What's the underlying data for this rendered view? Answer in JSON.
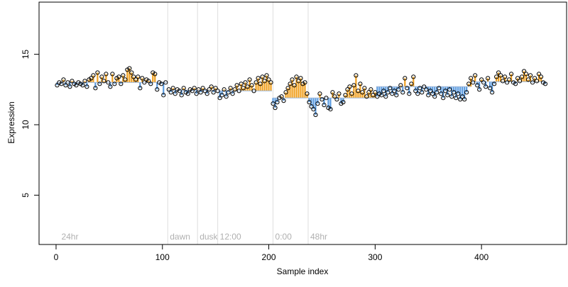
{
  "chart_data": {
    "type": "scatter",
    "title": "",
    "xlabel": "Sample index",
    "ylabel": "Expression",
    "xlim": [
      -16,
      480
    ],
    "ylim": [
      1.5,
      18.7
    ],
    "x_ticks": [
      0,
      100,
      200,
      300,
      400
    ],
    "y_ticks": [
      5,
      10,
      15
    ],
    "grid": false,
    "legend": "none",
    "colors": {
      "above_baseline": "#f0a020",
      "below_baseline": "#5a9be0",
      "phase_line": "#dedede",
      "phase_label": "#b0b0b0",
      "point_edge": "#000000"
    },
    "phase_markers": [
      {
        "x": 3,
        "label": "24hr"
      },
      {
        "x": 105,
        "label": "dawn"
      },
      {
        "x": 133,
        "label": "dusk"
      },
      {
        "x": 152,
        "label": "12:00"
      },
      {
        "x": 204,
        "label": "0:00"
      },
      {
        "x": 237,
        "label": "48hr"
      }
    ],
    "baseline_segments": [
      {
        "x": [
          1,
          104
        ],
        "y": 13.0
      },
      {
        "x": [
          105,
          151
        ],
        "y": 12.45
      },
      {
        "x": [
          152,
          203
        ],
        "y": 12.4
      },
      {
        "x": [
          204,
          236
        ],
        "y": 11.9
      },
      {
        "x": [
          237,
          300
        ],
        "y": 11.9
      },
      {
        "x": [
          301,
          390
        ],
        "y": 12.7
      },
      {
        "x": [
          391,
          460
        ],
        "y": 13.05
      }
    ],
    "series": [
      {
        "values": [
          [
            1,
            12.8
          ],
          [
            3,
            13.0
          ],
          [
            5,
            12.9
          ],
          [
            7,
            13.2
          ],
          [
            9,
            12.8
          ],
          [
            11,
            13.0
          ],
          [
            13,
            12.7
          ],
          [
            15,
            13.1
          ],
          [
            17,
            12.9
          ],
          [
            19,
            12.8
          ],
          [
            21,
            13.0
          ],
          [
            23,
            12.9
          ],
          [
            25,
            12.8
          ],
          [
            27,
            13.1
          ],
          [
            29,
            12.7
          ],
          [
            31,
            13.2
          ],
          [
            33,
            13.3
          ],
          [
            35,
            13.5
          ],
          [
            37,
            12.6
          ],
          [
            39,
            13.7
          ],
          [
            41,
            12.9
          ],
          [
            43,
            13.4
          ],
          [
            45,
            13.1
          ],
          [
            47,
            13.6
          ],
          [
            49,
            13.0
          ],
          [
            51,
            12.7
          ],
          [
            53,
            13.6
          ],
          [
            55,
            12.9
          ],
          [
            57,
            13.3
          ],
          [
            59,
            13.4
          ],
          [
            61,
            12.9
          ],
          [
            63,
            13.5
          ],
          [
            65,
            13.2
          ],
          [
            67,
            13.9
          ],
          [
            69,
            14.0
          ],
          [
            71,
            13.7
          ],
          [
            73,
            13.4
          ],
          [
            75,
            13.2
          ],
          [
            77,
            13.4
          ],
          [
            79,
            12.6
          ],
          [
            81,
            13.3
          ],
          [
            83,
            13.0
          ],
          [
            85,
            13.2
          ],
          [
            87,
            13.1
          ],
          [
            89,
            12.9
          ],
          [
            91,
            13.7
          ],
          [
            93,
            13.6
          ],
          [
            95,
            12.5
          ],
          [
            97,
            13.0
          ],
          [
            99,
            12.9
          ],
          [
            101,
            12.1
          ],
          [
            103,
            13.0
          ],
          [
            106,
            12.5
          ],
          [
            108,
            12.3
          ],
          [
            110,
            12.6
          ],
          [
            112,
            12.2
          ],
          [
            114,
            12.5
          ],
          [
            116,
            12.4
          ],
          [
            118,
            12.1
          ],
          [
            120,
            12.6
          ],
          [
            122,
            12.3
          ],
          [
            124,
            12.2
          ],
          [
            126,
            12.5
          ],
          [
            128,
            12.4
          ],
          [
            130,
            12.6
          ],
          [
            132,
            12.2
          ],
          [
            134,
            12.5
          ],
          [
            136,
            12.3
          ],
          [
            138,
            12.6
          ],
          [
            140,
            12.4
          ],
          [
            142,
            12.2
          ],
          [
            144,
            12.5
          ],
          [
            146,
            12.7
          ],
          [
            148,
            12.3
          ],
          [
            150,
            12.6
          ],
          [
            152,
            12.4
          ],
          [
            154,
            11.9
          ],
          [
            156,
            12.1
          ],
          [
            158,
            12.5
          ],
          [
            160,
            12.0
          ],
          [
            162,
            12.3
          ],
          [
            164,
            12.6
          ],
          [
            166,
            12.2
          ],
          [
            168,
            12.5
          ],
          [
            170,
            12.8
          ],
          [
            172,
            12.4
          ],
          [
            174,
            12.9
          ],
          [
            176,
            12.6
          ],
          [
            178,
            13.0
          ],
          [
            180,
            12.7
          ],
          [
            182,
            13.2
          ],
          [
            184,
            12.8
          ],
          [
            186,
            12.4
          ],
          [
            188,
            13.0
          ],
          [
            190,
            13.3
          ],
          [
            192,
            12.9
          ],
          [
            194,
            13.4
          ],
          [
            196,
            13.1
          ],
          [
            198,
            13.5
          ],
          [
            200,
            13.2
          ],
          [
            202,
            13.0
          ],
          [
            204,
            11.5
          ],
          [
            206,
            11.2
          ],
          [
            208,
            11.6
          ],
          [
            210,
            11.9
          ],
          [
            212,
            12.0
          ],
          [
            214,
            11.7
          ],
          [
            216,
            12.3
          ],
          [
            218,
            12.6
          ],
          [
            220,
            12.9
          ],
          [
            222,
            13.2
          ],
          [
            224,
            12.8
          ],
          [
            226,
            13.4
          ],
          [
            228,
            13.1
          ],
          [
            230,
            13.3
          ],
          [
            232,
            12.9
          ],
          [
            234,
            13.0
          ],
          [
            236,
            12.2
          ],
          [
            238,
            11.6
          ],
          [
            240,
            11.3
          ],
          [
            242,
            11.1
          ],
          [
            244,
            10.7
          ],
          [
            246,
            11.5
          ],
          [
            248,
            12.2
          ],
          [
            250,
            11.8
          ],
          [
            252,
            11.4
          ],
          [
            254,
            11.9
          ],
          [
            256,
            11.2
          ],
          [
            258,
            11.1
          ],
          [
            260,
            12.3
          ],
          [
            262,
            12.0
          ],
          [
            264,
            11.8
          ],
          [
            266,
            12.2
          ],
          [
            268,
            11.5
          ],
          [
            270,
            11.6
          ],
          [
            272,
            12.1
          ],
          [
            274,
            12.5
          ],
          [
            276,
            12.7
          ],
          [
            278,
            12.2
          ],
          [
            280,
            12.8
          ],
          [
            282,
            13.5
          ],
          [
            284,
            12.4
          ],
          [
            286,
            12.9
          ],
          [
            288,
            12.3
          ],
          [
            290,
            12.6
          ],
          [
            292,
            12.0
          ],
          [
            294,
            12.3
          ],
          [
            296,
            12.5
          ],
          [
            298,
            12.1
          ],
          [
            300,
            12.3
          ],
          [
            302,
            12.0
          ],
          [
            304,
            12.2
          ],
          [
            306,
            12.1
          ],
          [
            308,
            12.4
          ],
          [
            310,
            12.0
          ],
          [
            312,
            12.3
          ],
          [
            314,
            12.6
          ],
          [
            316,
            12.2
          ],
          [
            318,
            12.4
          ],
          [
            320,
            12.1
          ],
          [
            322,
            12.5
          ],
          [
            324,
            12.8
          ],
          [
            326,
            12.3
          ],
          [
            328,
            13.3
          ],
          [
            330,
            12.6
          ],
          [
            332,
            12.2
          ],
          [
            334,
            12.9
          ],
          [
            336,
            13.4
          ],
          [
            338,
            12.4
          ],
          [
            340,
            12.2
          ],
          [
            342,
            12.6
          ],
          [
            344,
            12.3
          ],
          [
            346,
            12.7
          ],
          [
            348,
            12.5
          ],
          [
            350,
            12.1
          ],
          [
            352,
            12.4
          ],
          [
            354,
            12.2
          ],
          [
            356,
            12.0
          ],
          [
            358,
            12.3
          ],
          [
            360,
            12.6
          ],
          [
            362,
            12.2
          ],
          [
            364,
            11.9
          ],
          [
            366,
            12.4
          ],
          [
            368,
            12.1
          ],
          [
            370,
            12.5
          ],
          [
            372,
            12.0
          ],
          [
            374,
            12.3
          ],
          [
            376,
            11.9
          ],
          [
            378,
            12.2
          ],
          [
            380,
            11.8
          ],
          [
            382,
            12.0
          ],
          [
            384,
            11.8
          ],
          [
            386,
            12.3
          ],
          [
            388,
            12.9
          ],
          [
            390,
            13.3
          ],
          [
            392,
            13.0
          ],
          [
            394,
            13.5
          ],
          [
            396,
            12.8
          ],
          [
            398,
            12.5
          ],
          [
            400,
            13.2
          ],
          [
            402,
            13.0
          ],
          [
            404,
            12.7
          ],
          [
            406,
            13.3
          ],
          [
            408,
            12.6
          ],
          [
            410,
            12.3
          ],
          [
            412,
            12.9
          ],
          [
            414,
            13.4
          ],
          [
            416,
            13.7
          ],
          [
            418,
            13.5
          ],
          [
            420,
            13.1
          ],
          [
            422,
            13.4
          ],
          [
            424,
            13.0
          ],
          [
            426,
            13.2
          ],
          [
            428,
            13.6
          ],
          [
            430,
            13.0
          ],
          [
            432,
            12.9
          ],
          [
            434,
            13.3
          ],
          [
            436,
            13.1
          ],
          [
            438,
            13.4
          ],
          [
            440,
            13.8
          ],
          [
            442,
            13.6
          ],
          [
            444,
            13.2
          ],
          [
            446,
            13.5
          ],
          [
            448,
            13.0
          ],
          [
            450,
            13.3
          ],
          [
            452,
            13.1
          ],
          [
            454,
            13.6
          ],
          [
            456,
            13.4
          ],
          [
            458,
            13.0
          ],
          [
            460,
            12.9
          ]
        ]
      }
    ]
  }
}
